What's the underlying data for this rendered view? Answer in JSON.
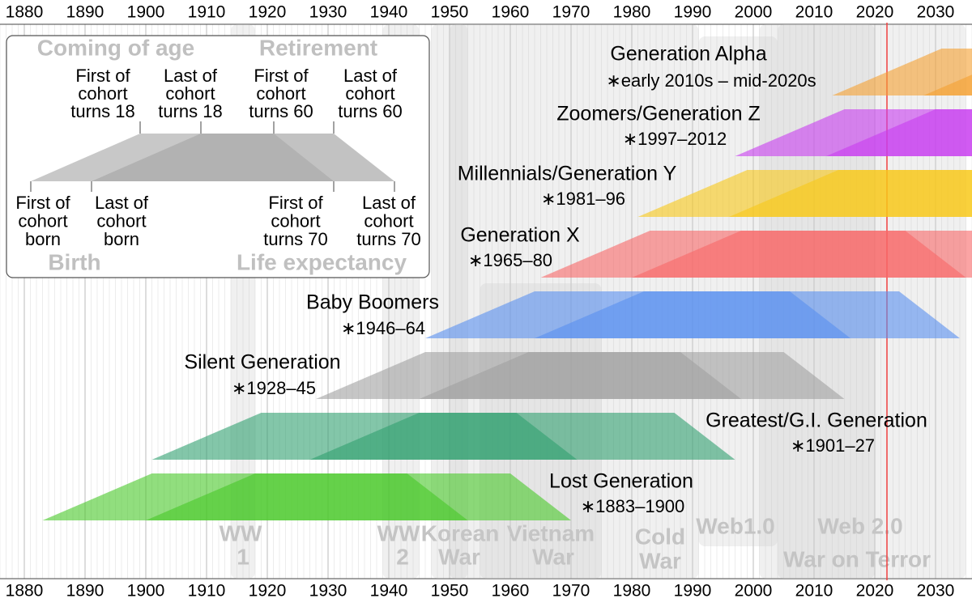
{
  "chart_data": {
    "type": "timeline",
    "xlim": [
      1876,
      2036
    ],
    "xticks": [
      1880,
      1890,
      1900,
      1910,
      1920,
      1930,
      1940,
      1950,
      1960,
      1970,
      1980,
      1990,
      2000,
      2010,
      2020,
      2030
    ],
    "current_year": 2022,
    "ages": {
      "coming_of_age": 18,
      "retirement": 60,
      "life_expectancy": 70
    },
    "generations": [
      {
        "name": "Generation Alpha",
        "cohort": "∗early 2010s – mid-2020s",
        "start": 2013,
        "end": 2028,
        "color": "#f5a030"
      },
      {
        "name": "Zoomers/Generation Z",
        "cohort": "∗1997–2012",
        "start": 1997,
        "end": 2012,
        "color": "#c83cf0"
      },
      {
        "name": "Millennials/Generation Y",
        "cohort": "∗1981–96",
        "start": 1981,
        "end": 1996,
        "color": "#f8c818"
      },
      {
        "name": "Generation X",
        "cohort": "∗1965–80",
        "start": 1965,
        "end": 1980,
        "color": "#f86868"
      },
      {
        "name": "Baby Boomers",
        "cohort": "∗1946–64",
        "start": 1946,
        "end": 1964,
        "color": "#5890f0"
      },
      {
        "name": "Silent Generation",
        "cohort": "∗1928–45",
        "start": 1928,
        "end": 1945,
        "color": "#a0a0a0"
      },
      {
        "name": "Greatest/G.I. Generation",
        "cohort": "∗1901–27",
        "start": 1901,
        "end": 1927,
        "color": "#30a070"
      },
      {
        "name": "Lost Generation",
        "cohort": "∗1883–1900",
        "start": 1883,
        "end": 1900,
        "color": "#48c828"
      }
    ],
    "events": [
      {
        "label": [
          "WW",
          "1"
        ],
        "start": 1914,
        "end": 1918
      },
      {
        "label": [
          "WW",
          "2"
        ],
        "start": 1939,
        "end": 1945
      },
      {
        "label": [
          "Korean",
          "War"
        ],
        "start": 1950,
        "end": 1953
      },
      {
        "label": [
          "Vietnam",
          "War"
        ],
        "start": 1955,
        "end": 1975
      },
      {
        "label": [
          "Cold",
          "War"
        ],
        "start": 1947,
        "end": 1991
      },
      {
        "label": [
          "Web1.0"
        ],
        "start": 1991,
        "end": 2004
      },
      {
        "label": [
          "Web 2.0"
        ],
        "start": 2004,
        "end": 2020
      },
      {
        "label": [
          "War on Terror"
        ],
        "start": 2001,
        "end": 2035
      }
    ],
    "legend": {
      "headings": [
        "Coming of age",
        "Retirement",
        "Birth",
        "Life expectancy"
      ],
      "top_labels": [
        [
          "First of",
          "cohort",
          "turns 18"
        ],
        [
          "Last of",
          "cohort",
          "turns 18"
        ],
        [
          "First of",
          "cohort",
          "turns 60"
        ],
        [
          "Last of",
          "cohort",
          "turns 60"
        ]
      ],
      "bottom_labels": [
        [
          "First of",
          "cohort",
          "born"
        ],
        [
          "Last of",
          "cohort",
          "born"
        ],
        [
          "First of",
          "cohort",
          "turns 70"
        ],
        [
          "Last of",
          "cohort",
          "turns 70"
        ]
      ]
    }
  }
}
